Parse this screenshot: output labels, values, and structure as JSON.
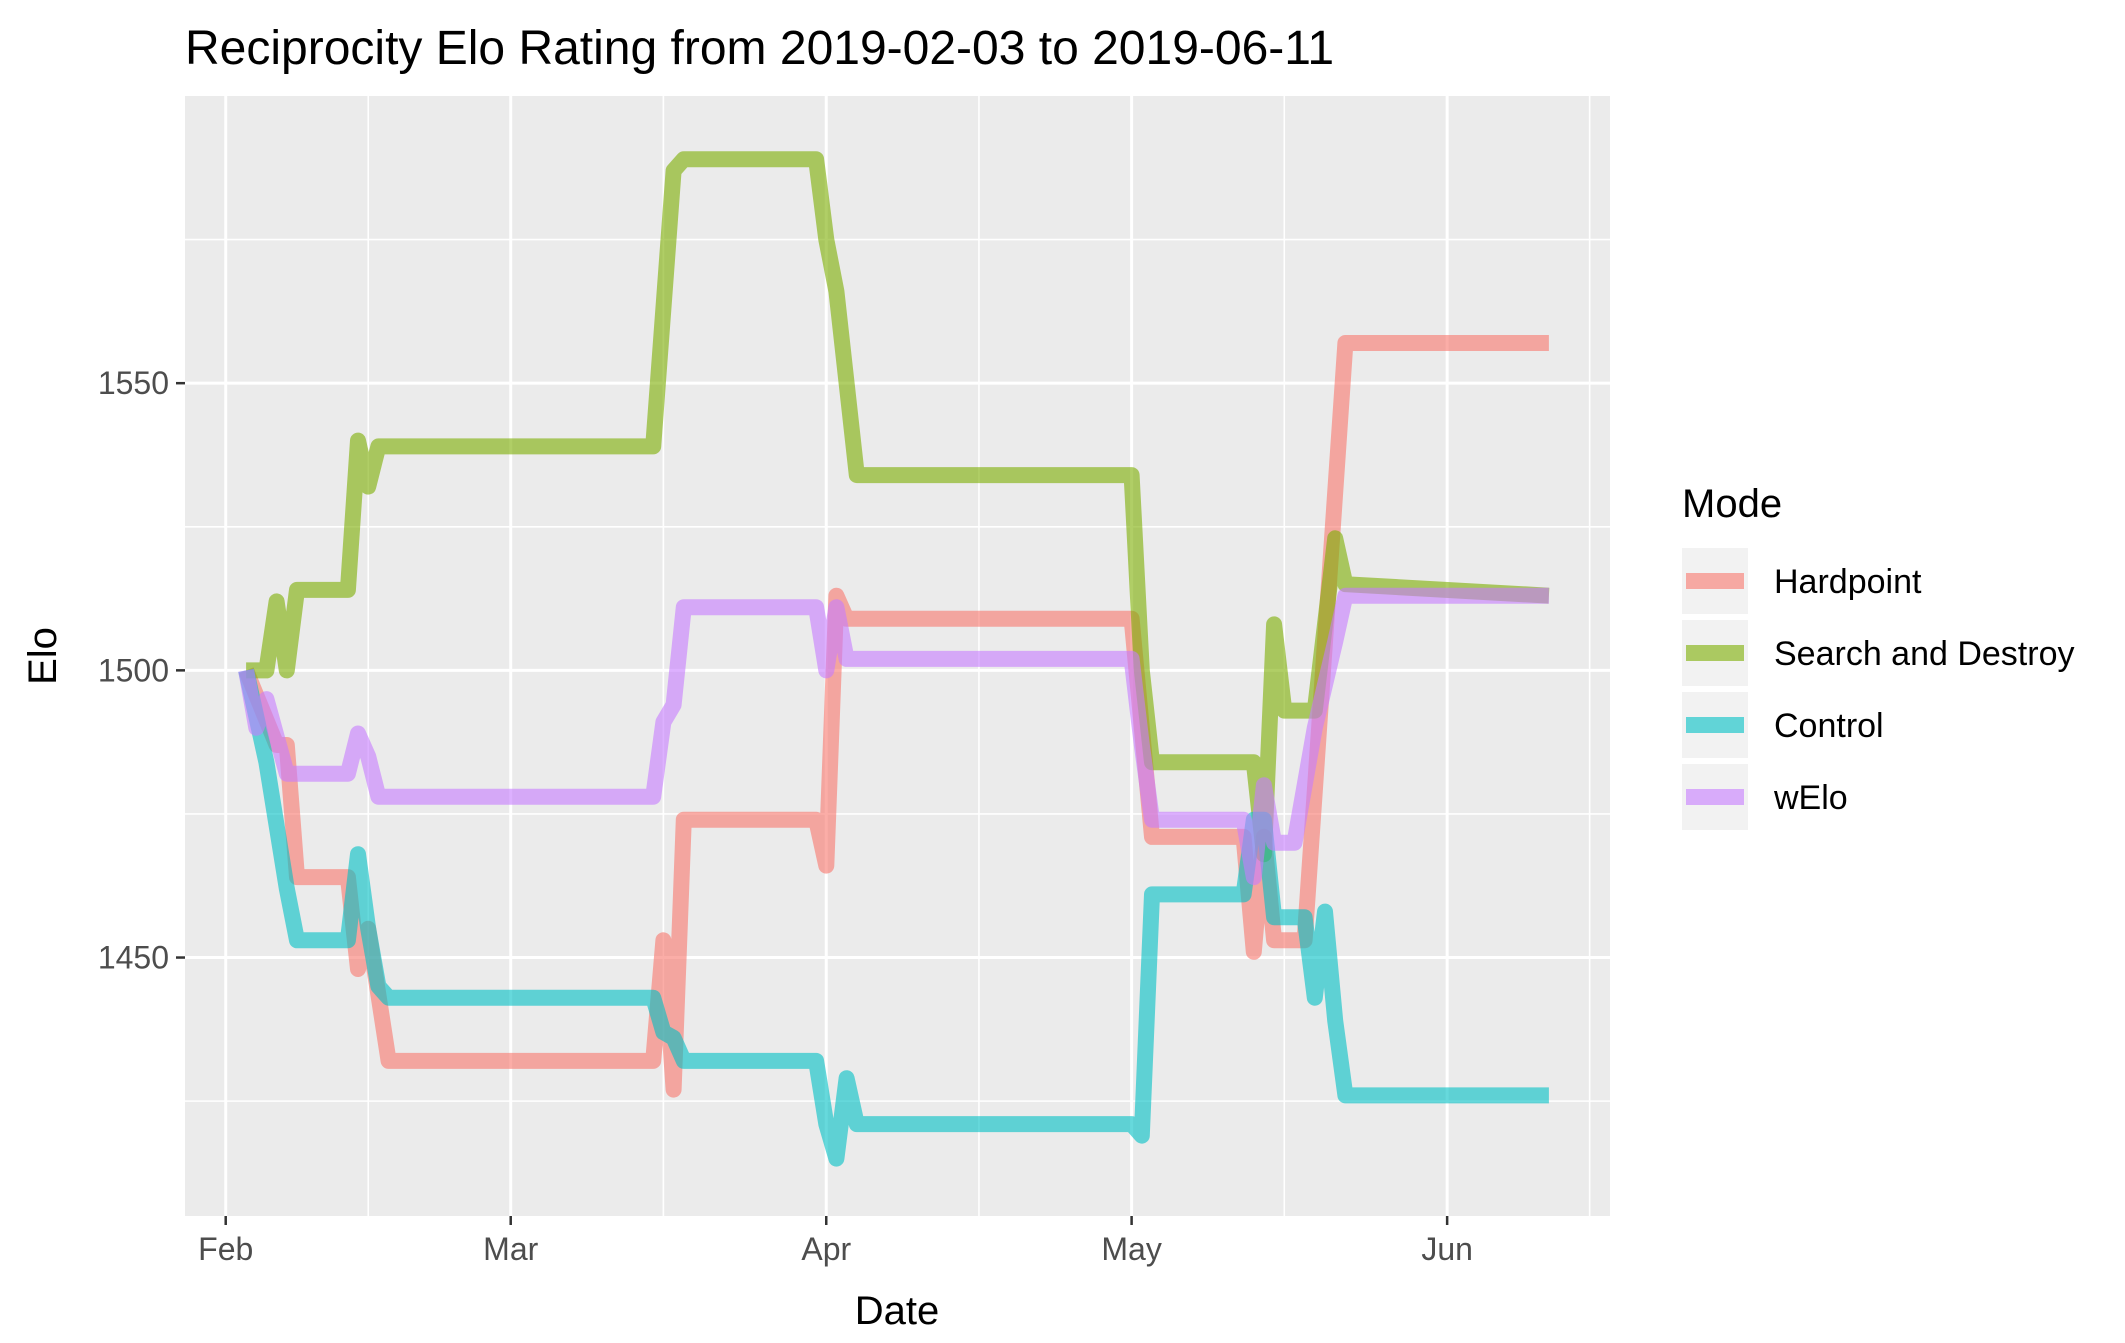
{
  "chart_data": {
    "type": "line",
    "title": "Reciprocity Elo Rating from 2019-02-03 to 2019-06-11",
    "xlabel": "Date",
    "ylabel": "Elo",
    "x_ticks": [
      {
        "date": "2019-02-01",
        "label": "Feb"
      },
      {
        "date": "2019-03-01",
        "label": "Mar"
      },
      {
        "date": "2019-04-01",
        "label": "Apr"
      },
      {
        "date": "2019-05-01",
        "label": "May"
      },
      {
        "date": "2019-06-01",
        "label": "Jun"
      }
    ],
    "x_minor_dates": [
      "2019-02-15",
      "2019-03-16",
      "2019-04-16",
      "2019-05-16",
      "2019-06-15"
    ],
    "xlim": [
      "2019-01-28",
      "2019-06-17"
    ],
    "y_ticks": [
      1450,
      1500,
      1550
    ],
    "y_minor": [
      1425,
      1475,
      1525,
      1575
    ],
    "ylim": [
      1405,
      1600
    ],
    "grid": true,
    "background": "#ebebeb",
    "legend": {
      "title": "Mode",
      "position": "right"
    },
    "series": [
      {
        "name": "Hardpoint",
        "color": "#F8766D",
        "points": [
          [
            "2019-02-03",
            1500
          ],
          [
            "2019-02-06",
            1487
          ],
          [
            "2019-02-07",
            1487
          ],
          [
            "2019-02-08",
            1464
          ],
          [
            "2019-02-13",
            1464
          ],
          [
            "2019-02-14",
            1448
          ],
          [
            "2019-02-15",
            1455
          ],
          [
            "2019-02-17",
            1432
          ],
          [
            "2019-03-15",
            1432
          ],
          [
            "2019-03-16",
            1453
          ],
          [
            "2019-03-17",
            1427
          ],
          [
            "2019-03-18",
            1474
          ],
          [
            "2019-03-31",
            1474
          ],
          [
            "2019-04-01",
            1466
          ],
          [
            "2019-04-02",
            1513
          ],
          [
            "2019-04-03",
            1509
          ],
          [
            "2019-05-01",
            1509
          ],
          [
            "2019-05-03",
            1471
          ],
          [
            "2019-05-12",
            1471
          ],
          [
            "2019-05-13",
            1451
          ],
          [
            "2019-05-14",
            1471
          ],
          [
            "2019-05-15",
            1453
          ],
          [
            "2019-05-18",
            1453
          ],
          [
            "2019-05-22",
            1557
          ],
          [
            "2019-06-11",
            1557
          ]
        ]
      },
      {
        "name": "Search and Destroy",
        "color": "#7CAE00",
        "points": [
          [
            "2019-02-03",
            1500
          ],
          [
            "2019-02-05",
            1500
          ],
          [
            "2019-02-06",
            1512
          ],
          [
            "2019-02-07",
            1500
          ],
          [
            "2019-02-08",
            1514
          ],
          [
            "2019-02-13",
            1514
          ],
          [
            "2019-02-14",
            1540
          ],
          [
            "2019-02-15",
            1532
          ],
          [
            "2019-02-16",
            1539
          ],
          [
            "2019-03-15",
            1539
          ],
          [
            "2019-03-16",
            1563
          ],
          [
            "2019-03-17",
            1587
          ],
          [
            "2019-03-18",
            1589
          ],
          [
            "2019-03-31",
            1589
          ],
          [
            "2019-04-01",
            1575
          ],
          [
            "2019-04-02",
            1566
          ],
          [
            "2019-04-04",
            1534
          ],
          [
            "2019-05-01",
            1534
          ],
          [
            "2019-05-02",
            1500
          ],
          [
            "2019-05-03",
            1484
          ],
          [
            "2019-05-13",
            1484
          ],
          [
            "2019-05-14",
            1468
          ],
          [
            "2019-05-15",
            1508
          ],
          [
            "2019-05-16",
            1493
          ],
          [
            "2019-05-19",
            1493
          ],
          [
            "2019-05-21",
            1523
          ],
          [
            "2019-05-22",
            1515
          ],
          [
            "2019-06-11",
            1513
          ]
        ]
      },
      {
        "name": "Control",
        "color": "#00BFC4",
        "points": [
          [
            "2019-02-03",
            1500
          ],
          [
            "2019-02-05",
            1484
          ],
          [
            "2019-02-07",
            1462
          ],
          [
            "2019-02-08",
            1453
          ],
          [
            "2019-02-13",
            1453
          ],
          [
            "2019-02-14",
            1468
          ],
          [
            "2019-02-15",
            1455
          ],
          [
            "2019-02-16",
            1445
          ],
          [
            "2019-02-17",
            1443
          ],
          [
            "2019-03-15",
            1443
          ],
          [
            "2019-03-16",
            1437
          ],
          [
            "2019-03-17",
            1436
          ],
          [
            "2019-03-18",
            1432
          ],
          [
            "2019-03-31",
            1432
          ],
          [
            "2019-04-01",
            1421
          ],
          [
            "2019-04-02",
            1415
          ],
          [
            "2019-04-03",
            1429
          ],
          [
            "2019-04-04",
            1421
          ],
          [
            "2019-05-01",
            1421
          ],
          [
            "2019-05-02",
            1419
          ],
          [
            "2019-05-03",
            1461
          ],
          [
            "2019-05-12",
            1461
          ],
          [
            "2019-05-13",
            1474
          ],
          [
            "2019-05-14",
            1474
          ],
          [
            "2019-05-15",
            1457
          ],
          [
            "2019-05-18",
            1457
          ],
          [
            "2019-05-19",
            1443
          ],
          [
            "2019-05-20",
            1458
          ],
          [
            "2019-05-21",
            1439
          ],
          [
            "2019-05-22",
            1426
          ],
          [
            "2019-06-11",
            1426
          ]
        ]
      },
      {
        "name": "wElo",
        "color": "#C77CFF",
        "points": [
          [
            "2019-02-03",
            1500
          ],
          [
            "2019-02-04",
            1490
          ],
          [
            "2019-02-05",
            1495
          ],
          [
            "2019-02-07",
            1482
          ],
          [
            "2019-02-13",
            1482
          ],
          [
            "2019-02-14",
            1489
          ],
          [
            "2019-02-15",
            1485
          ],
          [
            "2019-02-16",
            1478
          ],
          [
            "2019-03-15",
            1478
          ],
          [
            "2019-03-16",
            1491
          ],
          [
            "2019-03-17",
            1494
          ],
          [
            "2019-03-18",
            1511
          ],
          [
            "2019-03-31",
            1511
          ],
          [
            "2019-04-01",
            1500
          ],
          [
            "2019-04-02",
            1511
          ],
          [
            "2019-04-03",
            1502
          ],
          [
            "2019-05-01",
            1502
          ],
          [
            "2019-05-02",
            1487
          ],
          [
            "2019-05-03",
            1474
          ],
          [
            "2019-05-12",
            1474
          ],
          [
            "2019-05-13",
            1464
          ],
          [
            "2019-05-14",
            1480
          ],
          [
            "2019-05-15",
            1470
          ],
          [
            "2019-05-17",
            1470
          ],
          [
            "2019-05-19",
            1490
          ],
          [
            "2019-05-21",
            1505
          ],
          [
            "2019-05-22",
            1513
          ],
          [
            "2019-06-11",
            1513
          ]
        ]
      }
    ]
  }
}
